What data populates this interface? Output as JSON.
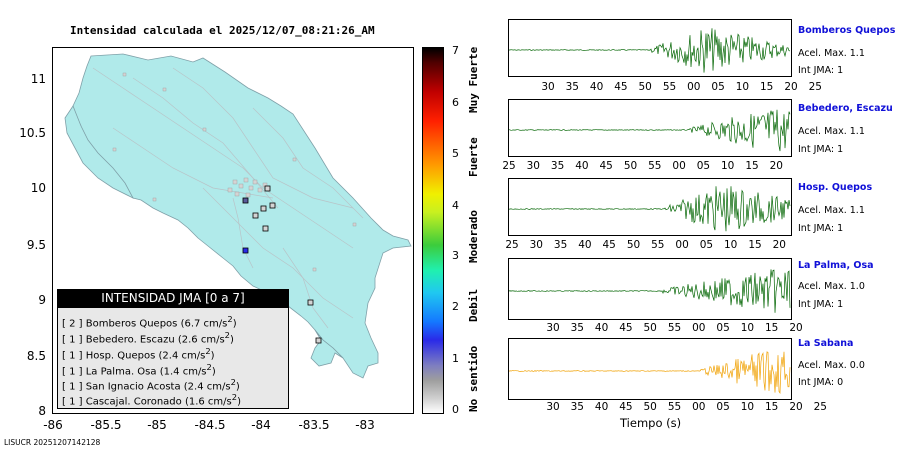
{
  "map": {
    "title": "Intensidad calculada el 2025/12/07_08:21:26_AM",
    "y_ticks": [
      "11",
      "10.5",
      "10",
      "9.5",
      "9",
      "8.5",
      "8"
    ],
    "x_ticks": [
      "-86",
      "-85.5",
      "-85",
      "-84.5",
      "-84",
      "-83.5",
      "-83"
    ],
    "land_color": "#b0eaea"
  },
  "legend": {
    "title": "INTENSIDAD JMA [0 a 7]",
    "rows": [
      {
        "level": "[ 2 ]",
        "name": "Bomberos Quepos",
        "accel": "(6.7 cm/s",
        "sup": "2",
        "close": ")"
      },
      {
        "level": "[ 1 ]",
        "name": "Bebedero. Escazu",
        "accel": "(2.6 cm/s",
        "sup": "2",
        "close": ")"
      },
      {
        "level": "[ 1 ]",
        "name": "Hosp. Quepos",
        "accel": "(2.4 cm/s",
        "sup": "2",
        "close": ")"
      },
      {
        "level": "[ 1 ]",
        "name": "La Palma. Osa",
        "accel": "(1.4 cm/s",
        "sup": "2",
        "close": ")"
      },
      {
        "level": "[ 1 ]",
        "name": "San Ignacio Acosta",
        "accel": "(2.4 cm/s",
        "sup": "2",
        "close": ")"
      },
      {
        "level": "[ 1 ]",
        "name": "Cascajal. Coronado",
        "accel": "(1.6 cm/s",
        "sup": "2",
        "close": ")"
      }
    ]
  },
  "colorbar": {
    "ticks": [
      "0",
      "1",
      "2",
      "3",
      "4",
      "5",
      "6",
      "7"
    ],
    "labels": [
      "No sentido",
      "Debil",
      "Moderado",
      "Fuerte",
      "Muy Fuerte"
    ]
  },
  "stations": [
    {
      "name": "Bomberos Quepos",
      "accel": "Acel. Max. 1.1",
      "jma": "Int JMA: 1",
      "color": "#006400",
      "ticks": [
        "30",
        "35",
        "40",
        "45",
        "50",
        "55",
        "00",
        "05",
        "10",
        "15",
        "20",
        "25"
      ]
    },
    {
      "name": "Bebedero, Escazu",
      "accel": "Acel. Max. 1.1",
      "jma": "Int JMA: 1",
      "color": "#006400",
      "ticks": [
        "25",
        "30",
        "35",
        "40",
        "45",
        "50",
        "55",
        "00",
        "05",
        "10",
        "15",
        "20"
      ]
    },
    {
      "name": "Hosp. Quepos",
      "accel": "Acel. Max. 1.1",
      "jma": "Int JMA: 1",
      "color": "#006400",
      "ticks": [
        "25",
        "30",
        "35",
        "40",
        "45",
        "50",
        "55",
        "00",
        "05",
        "10",
        "15",
        "20"
      ]
    },
    {
      "name": "La Palma, Osa",
      "accel": "Acel. Max. 1.0",
      "jma": "Int JMA: 1",
      "color": "#006400",
      "ticks": [
        "30",
        "35",
        "40",
        "45",
        "50",
        "55",
        "00",
        "05",
        "10",
        "15",
        "20"
      ]
    },
    {
      "name": "La Sabana",
      "accel": "Acel. Max. 0.0",
      "jma": "Int JMA: 0",
      "color": "#f0a000",
      "ticks": [
        "30",
        "35",
        "40",
        "45",
        "50",
        "55",
        "00",
        "05",
        "10",
        "15",
        "20",
        "25"
      ]
    }
  ],
  "xaxis_label": "Tiempo (s)",
  "footer": "LISUCR 20251207142128"
}
